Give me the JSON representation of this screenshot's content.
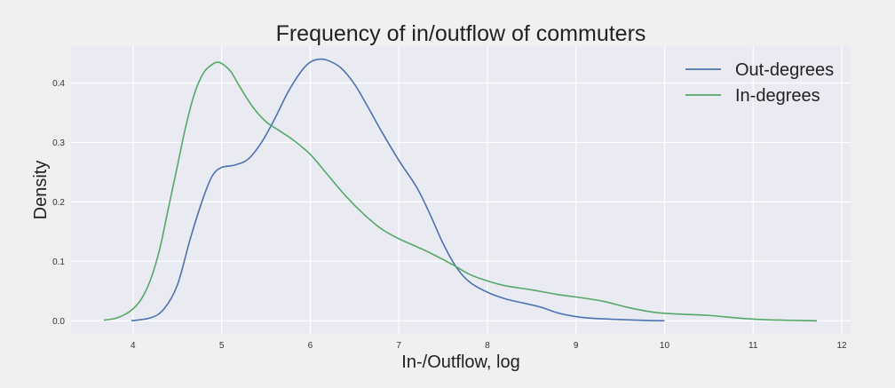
{
  "chart_data": {
    "type": "line",
    "title": "Frequency of in/outflow of commuters",
    "xlabel": "In-/Outflow, log",
    "ylabel": "Density",
    "xlim": [
      3.3,
      12.1
    ],
    "ylim": [
      -0.022,
      0.462
    ],
    "xticks": [
      4,
      5,
      6,
      7,
      8,
      9,
      10,
      11,
      12
    ],
    "yticks": [
      0.0,
      0.1,
      0.2,
      0.3,
      0.4
    ],
    "ytick_labels": [
      "0.0",
      "0.1",
      "0.2",
      "0.3",
      "0.4"
    ],
    "grid": true,
    "legend_position": "top-right",
    "series": [
      {
        "name": "Out-degrees",
        "color": "#4c72b0",
        "x": [
          3.98,
          4.2,
          4.35,
          4.5,
          4.65,
          4.8,
          4.9,
          5.0,
          5.15,
          5.3,
          5.45,
          5.6,
          5.75,
          5.9,
          6.0,
          6.1,
          6.2,
          6.35,
          6.5,
          6.65,
          6.8,
          7.0,
          7.2,
          7.35,
          7.5,
          7.65,
          7.8,
          8.0,
          8.2,
          8.4,
          8.6,
          8.8,
          9.0,
          9.2,
          9.5,
          9.8,
          10.0
        ],
        "y": [
          0.0,
          0.005,
          0.02,
          0.06,
          0.14,
          0.21,
          0.245,
          0.258,
          0.262,
          0.272,
          0.3,
          0.34,
          0.385,
          0.42,
          0.435,
          0.44,
          0.438,
          0.425,
          0.398,
          0.36,
          0.32,
          0.27,
          0.225,
          0.18,
          0.13,
          0.09,
          0.065,
          0.048,
          0.037,
          0.03,
          0.023,
          0.013,
          0.007,
          0.004,
          0.002,
          0.0005,
          0.0
        ]
      },
      {
        "name": "In-degrees",
        "color": "#55a868",
        "x": [
          3.67,
          3.8,
          3.9,
          4.0,
          4.1,
          4.2,
          4.3,
          4.4,
          4.5,
          4.6,
          4.7,
          4.8,
          4.9,
          4.95,
          5.0,
          5.1,
          5.2,
          5.35,
          5.5,
          5.65,
          5.8,
          6.0,
          6.2,
          6.4,
          6.6,
          6.8,
          7.0,
          7.3,
          7.6,
          7.8,
          8.0,
          8.2,
          8.5,
          8.8,
          9.0,
          9.3,
          9.6,
          9.9,
          10.2,
          10.5,
          10.8,
          11.1,
          11.4,
          11.72
        ],
        "y": [
          0.001,
          0.004,
          0.01,
          0.02,
          0.038,
          0.07,
          0.12,
          0.19,
          0.26,
          0.33,
          0.385,
          0.418,
          0.432,
          0.435,
          0.433,
          0.42,
          0.395,
          0.36,
          0.335,
          0.32,
          0.305,
          0.28,
          0.245,
          0.21,
          0.18,
          0.155,
          0.138,
          0.118,
          0.095,
          0.078,
          0.067,
          0.059,
          0.052,
          0.044,
          0.04,
          0.033,
          0.022,
          0.014,
          0.011,
          0.009,
          0.005,
          0.002,
          0.0008,
          0.0
        ]
      }
    ]
  }
}
